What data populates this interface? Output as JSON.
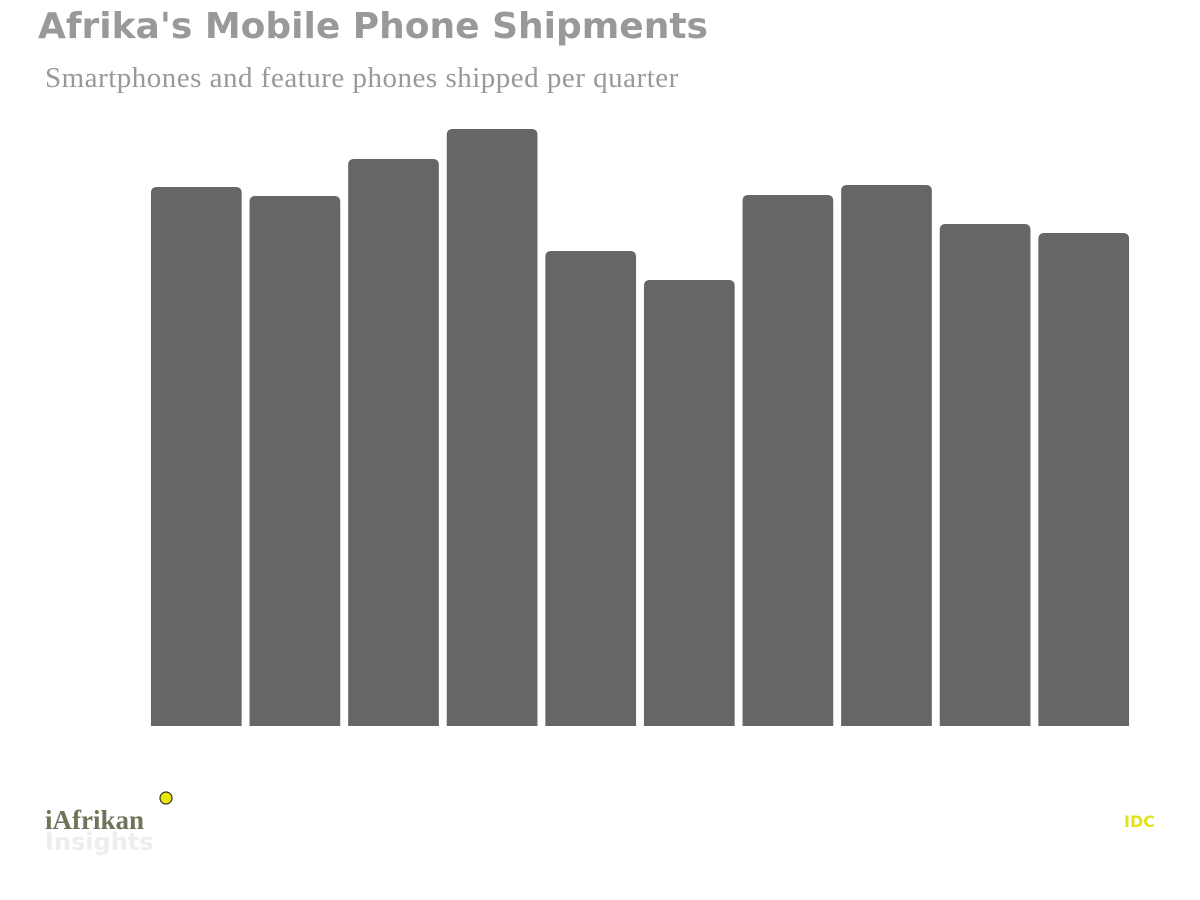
{
  "chart_data": {
    "type": "bar",
    "title": "Afrika's Mobile Phone Shipments",
    "subtitle": "Smartphones and feature phones shipped per quarter",
    "categories": [
      null,
      null,
      null,
      null,
      null,
      null,
      null,
      null,
      null,
      null
    ],
    "values": [
      53.9,
      53.0,
      56.7,
      59.7,
      47.5,
      44.6,
      53.1,
      54.1,
      50.2,
      49.3
    ],
    "color": "#666666",
    "ylim": [
      0,
      60
    ],
    "grid": false,
    "logo": "iAfrikan",
    "logo_sub": "Insights",
    "source": "IDC"
  }
}
